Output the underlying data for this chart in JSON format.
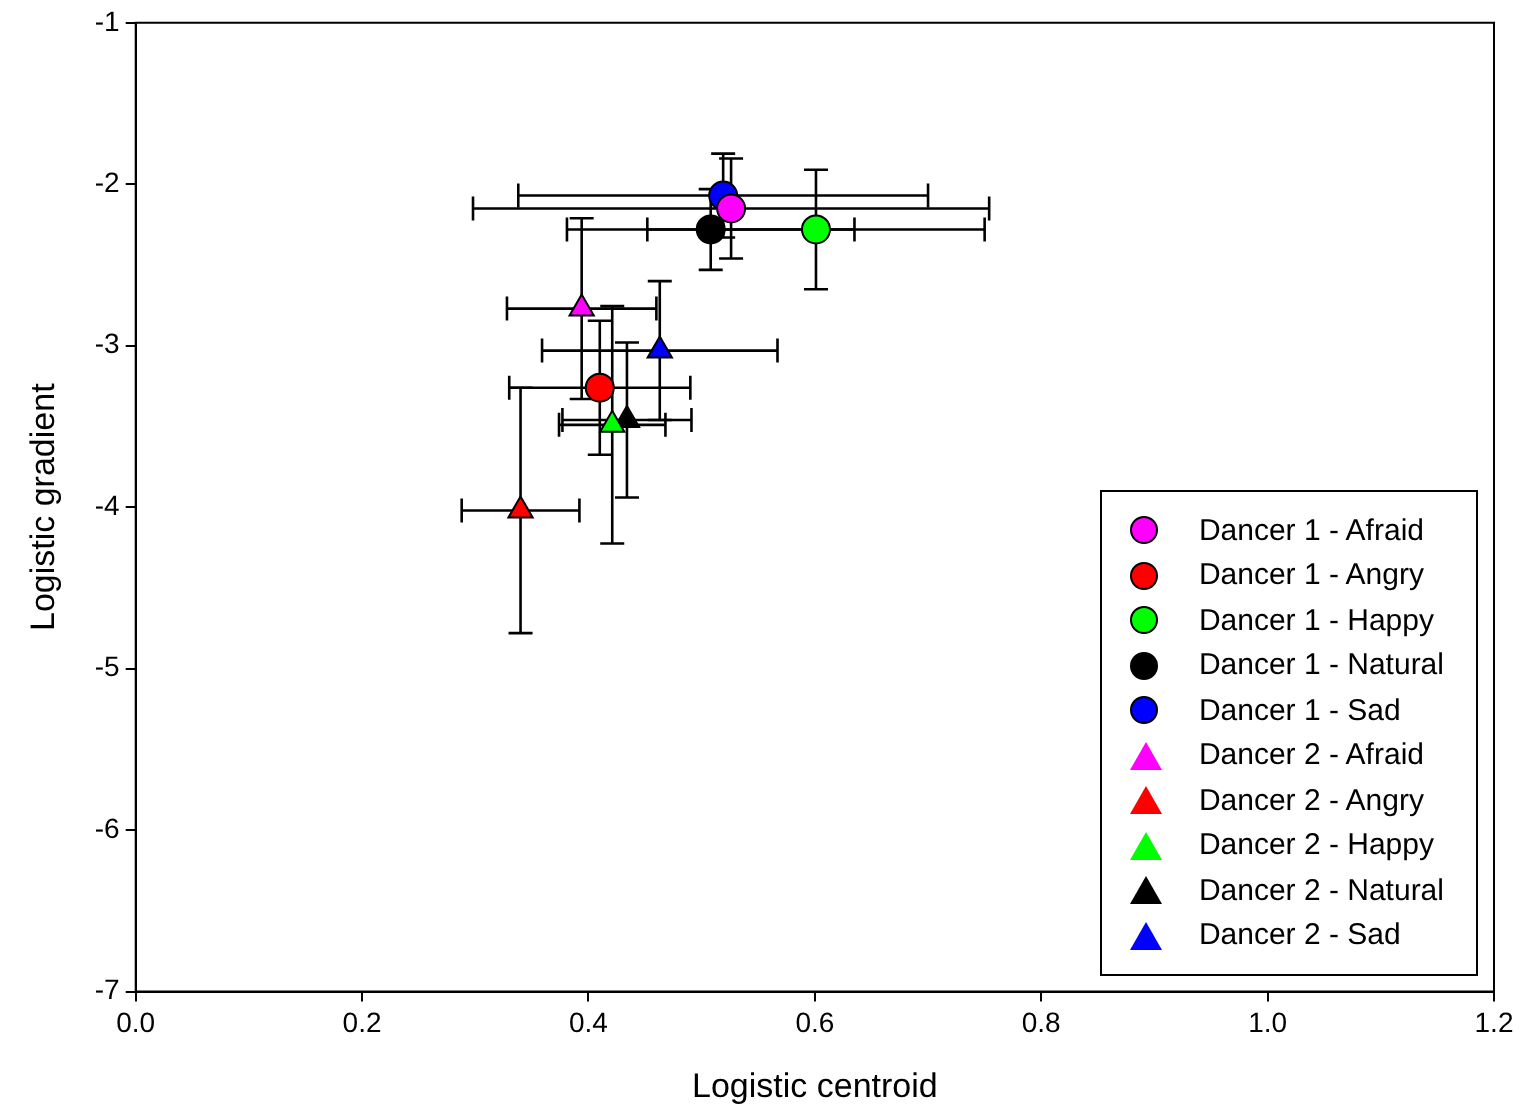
{
  "chart_data": {
    "type": "scatter",
    "xlabel": "Logistic centroid",
    "ylabel": "Logistic gradient",
    "xlim": [
      0,
      1.2
    ],
    "xticks": [
      {
        "value": 0,
        "label": "0.0"
      },
      0.2,
      0.4,
      0.6,
      0.8,
      {
        "value": 1,
        "label": "1.0"
      },
      {
        "value": 1.2,
        "label": "1.2"
      }
    ],
    "ylim": [
      -7,
      -1
    ],
    "yticks": [
      -7,
      -6,
      -5,
      -4,
      -3,
      -2,
      -1
    ],
    "grid": false,
    "legend": "bottom right",
    "series": [
      {
        "name": "Dancer 1 - Afraid",
        "color": "#ff00ff",
        "marker": "circle",
        "x": [
          0.526
        ],
        "values": [
          -2.15
        ],
        "errors": [
          0.31
        ],
        "xerrors": [
          0.228
        ]
      },
      {
        "name": "Dancer 1 - Angry",
        "color": "#ff0000",
        "marker": "circle",
        "x": [
          0.41
        ],
        "values": [
          -3.26
        ],
        "errors": [
          0.415
        ],
        "xerrors": [
          0.08
        ]
      },
      {
        "name": "Dancer 1 - Happy",
        "color": "#00ff00",
        "marker": "circle",
        "x": [
          0.601
        ],
        "values": [
          -2.28
        ],
        "errors": [
          0.37
        ],
        "xerrors": [
          0.149
        ]
      },
      {
        "name": "Dancer 1 - Natural",
        "color": "#000000",
        "marker": "circle",
        "x": [
          0.508
        ],
        "values": [
          -2.28
        ],
        "errors": [
          0.25
        ],
        "xerrors": [
          0.127
        ]
      },
      {
        "name": "Dancer 1 - Sad",
        "color": "#0000ff",
        "marker": "circle",
        "x": [
          0.519
        ],
        "values": [
          -2.07
        ],
        "errors": [
          0.26
        ],
        "xerrors": [
          0.181
        ]
      },
      {
        "name": "Dancer 2 - Afraid",
        "color": "#ff00ff",
        "marker": "triangle",
        "x": [
          0.394
        ],
        "values": [
          -2.77
        ],
        "errors": [
          0.56
        ],
        "xerrors": [
          0.066
        ]
      },
      {
        "name": "Dancer 2 - Angry",
        "color": "#ff0000",
        "marker": "triangle",
        "x": [
          0.34
        ],
        "values": [
          -4.02
        ],
        "errors": [
          0.76
        ],
        "xerrors": [
          0.052
        ]
      },
      {
        "name": "Dancer 2 - Happy",
        "color": "#00ff00",
        "marker": "triangle",
        "x": [
          0.421
        ],
        "values": [
          -3.49
        ],
        "errors": [
          0.735
        ],
        "xerrors": [
          0.047
        ]
      },
      {
        "name": "Dancer 2 - Natural",
        "color": "#000000",
        "marker": "triangle",
        "x": [
          0.434
        ],
        "values": [
          -3.46
        ],
        "errors": [
          0.48
        ],
        "xerrors": [
          0.057
        ]
      },
      {
        "name": "Dancer 2 - Sad",
        "color": "#0000ff",
        "marker": "triangle",
        "x": [
          0.463
        ],
        "values": [
          -3.03
        ],
        "errors": [
          0.43
        ],
        "xerrors": [
          0.104
        ]
      }
    ]
  }
}
